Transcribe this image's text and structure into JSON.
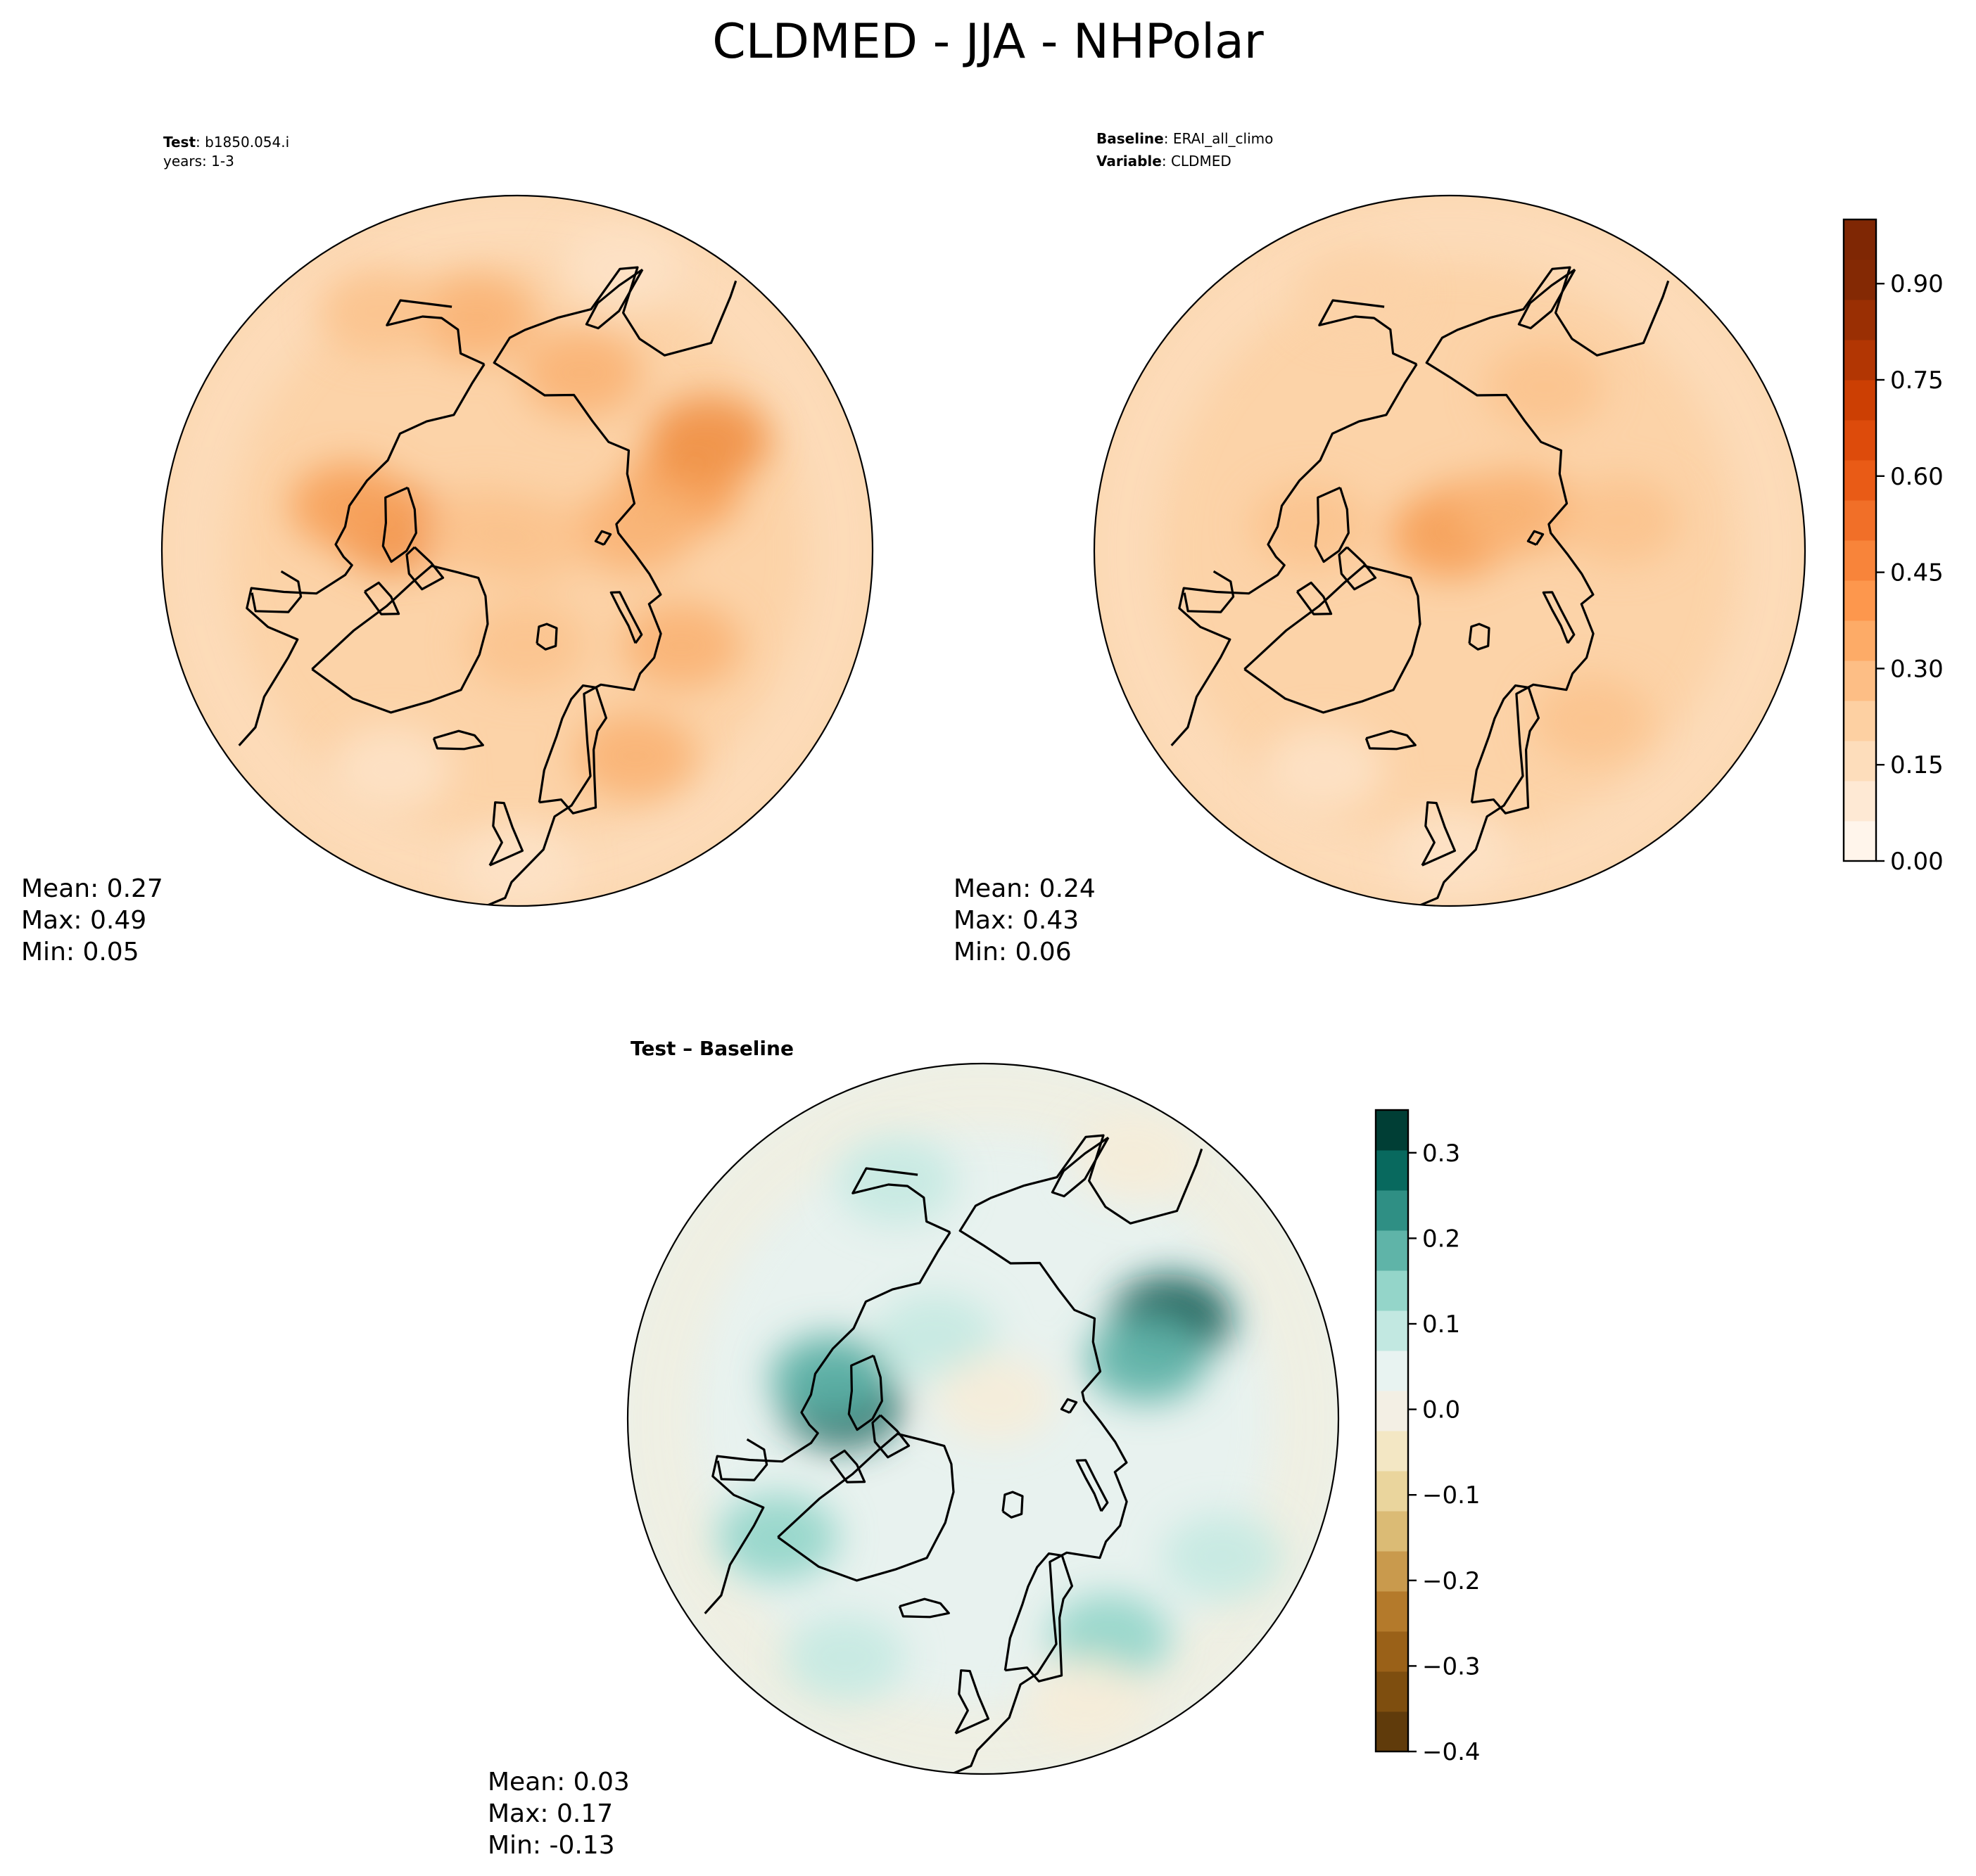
{
  "figure": {
    "title": "CLDMED - JJA - NHPolar"
  },
  "panels": [
    {
      "id": "test",
      "header": [
        {
          "bold": "Test",
          "sep": ": ",
          "text": "b1850.054.i"
        },
        {
          "bold": "",
          "sep": "",
          "text": "years: 1-3"
        }
      ],
      "stats": [
        "Mean:  0.27",
        "Max:  0.49",
        "Min:  0.05"
      ],
      "palette": [
        "#fdf0e3",
        "#fde2c6",
        "#fcd3a8",
        "#fbc38e",
        "#f9b375",
        "#f6a25c",
        "#f09147"
      ],
      "base_level": 2,
      "blobs": [
        {
          "lon": 110,
          "lat": 68,
          "level": 5
        },
        {
          "lon": 120,
          "lat": 62,
          "level": 6
        },
        {
          "lon": 100,
          "lat": 75,
          "level": 4
        },
        {
          "lon": 160,
          "lat": 66,
          "level": 4
        },
        {
          "lon": 260,
          "lat": 74,
          "level": 6
        },
        {
          "lon": 255,
          "lat": 68,
          "level": 5
        },
        {
          "lon": 30,
          "lat": 60,
          "level": 4
        },
        {
          "lon": 60,
          "lat": 66,
          "level": 4
        },
        {
          "lon": 5,
          "lat": 78,
          "level": 3
        },
        {
          "lon": 190,
          "lat": 60,
          "level": 4
        },
        {
          "lon": 210,
          "lat": 55,
          "level": 3
        },
        {
          "lon": 330,
          "lat": 58,
          "level": 1
        },
        {
          "lon": 135,
          "lat": 88,
          "level": 3
        },
        {
          "lon": 240,
          "lat": 85,
          "level": 3
        },
        {
          "lon": 160,
          "lat": 52,
          "level": 1
        },
        {
          "lon": 0,
          "lat": 50,
          "level": 1
        }
      ]
    },
    {
      "id": "baseline",
      "header": [
        {
          "bold": "Baseline",
          "sep": ": ",
          "text": "ERAI_all_climo"
        },
        {
          "bold": "Variable",
          "sep": ": ",
          "text": "CLDMED"
        }
      ],
      "stats": [
        "Mean:  0.24",
        "Max:  0.43",
        "Min:  0.06"
      ],
      "palette": [
        "#fdf0e3",
        "#fde2c6",
        "#fcd3a8",
        "#fbc38e",
        "#f9b375",
        "#f6a25c",
        "#f09147"
      ],
      "base_level": 2,
      "blobs": [
        {
          "lon": 140,
          "lat": 85,
          "level": 4
        },
        {
          "lon": 180,
          "lat": 88,
          "level": 5
        },
        {
          "lon": 120,
          "lat": 80,
          "level": 4
        },
        {
          "lon": 100,
          "lat": 68,
          "level": 3
        },
        {
          "lon": 150,
          "lat": 66,
          "level": 3
        },
        {
          "lon": 260,
          "lat": 72,
          "level": 3
        },
        {
          "lon": 40,
          "lat": 62,
          "level": 3
        },
        {
          "lon": 330,
          "lat": 58,
          "level": 1
        },
        {
          "lon": 0,
          "lat": 52,
          "level": 1
        },
        {
          "lon": 200,
          "lat": 55,
          "level": 2
        }
      ]
    },
    {
      "id": "diff",
      "header": [
        {
          "bold": "Test – Baseline",
          "sep": "",
          "text": ""
        }
      ],
      "stats": [
        "Mean:  0.03",
        "Max:  0.17",
        "Min: -0.13"
      ],
      "palette": [
        "#efe2bf",
        "#f5edd9",
        "#e8f2ef",
        "#c5e9e2",
        "#93d5c9",
        "#5fb3a8",
        "#1e7d73",
        "#0c5a51"
      ],
      "base_level": 2,
      "blobs": [
        {
          "lon": 118,
          "lat": 63,
          "level": 7
        },
        {
          "lon": 110,
          "lat": 68,
          "level": 5
        },
        {
          "lon": 264,
          "lat": 72,
          "level": 7
        },
        {
          "lon": 255,
          "lat": 70,
          "level": 5
        },
        {
          "lon": 300,
          "lat": 60,
          "level": 4
        },
        {
          "lon": 30,
          "lat": 58,
          "level": 4
        },
        {
          "lon": 200,
          "lat": 58,
          "level": 3
        },
        {
          "lon": 210,
          "lat": 78,
          "level": 3
        },
        {
          "lon": 150,
          "lat": 87,
          "level": 1
        },
        {
          "lon": 20,
          "lat": 52,
          "level": 1
        },
        {
          "lon": 330,
          "lat": 55,
          "level": 3
        },
        {
          "lon": 60,
          "lat": 55,
          "level": 3
        },
        {
          "lon": 150,
          "lat": 52,
          "level": 1
        }
      ]
    }
  ],
  "colorbars": [
    {
      "id": "cbar-main",
      "range": [
        0.0,
        1.0
      ],
      "ticks": [
        0.0,
        0.15,
        0.3,
        0.45,
        0.6,
        0.75,
        0.9
      ],
      "tick_labels": [
        "0.00",
        "0.15",
        "0.30",
        "0.45",
        "0.60",
        "0.75",
        "0.90"
      ],
      "colors": [
        "#fff5eb",
        "#fee9d4",
        "#fdddbb",
        "#fdd0a2",
        "#fdbe85",
        "#fdab67",
        "#fd974d",
        "#f8843a",
        "#f16f28",
        "#e95b16",
        "#dd4b0b",
        "#cc3f03",
        "#b23603",
        "#9a2f03",
        "#842904",
        "#7f2704"
      ]
    },
    {
      "id": "cbar-diff",
      "range": [
        -0.4,
        0.35
      ],
      "ticks": [
        -0.4,
        -0.3,
        -0.2,
        -0.1,
        0.0,
        0.1,
        0.2,
        0.3
      ],
      "tick_labels": [
        "−0.4",
        "−0.3",
        "−0.2",
        "−0.1",
        "0.0",
        "0.1",
        "0.2",
        "0.3"
      ],
      "colors": [
        "#603b0b",
        "#7e4e0f",
        "#9a6118",
        "#b47a2b",
        "#c99a4d",
        "#dbbb75",
        "#ead59d",
        "#f3e7c4",
        "#f3efe4",
        "#e8f3f1",
        "#c2e8e1",
        "#94d5c9",
        "#5fb4a8",
        "#2f8f84",
        "#08695e",
        "#003e35"
      ]
    }
  ]
}
